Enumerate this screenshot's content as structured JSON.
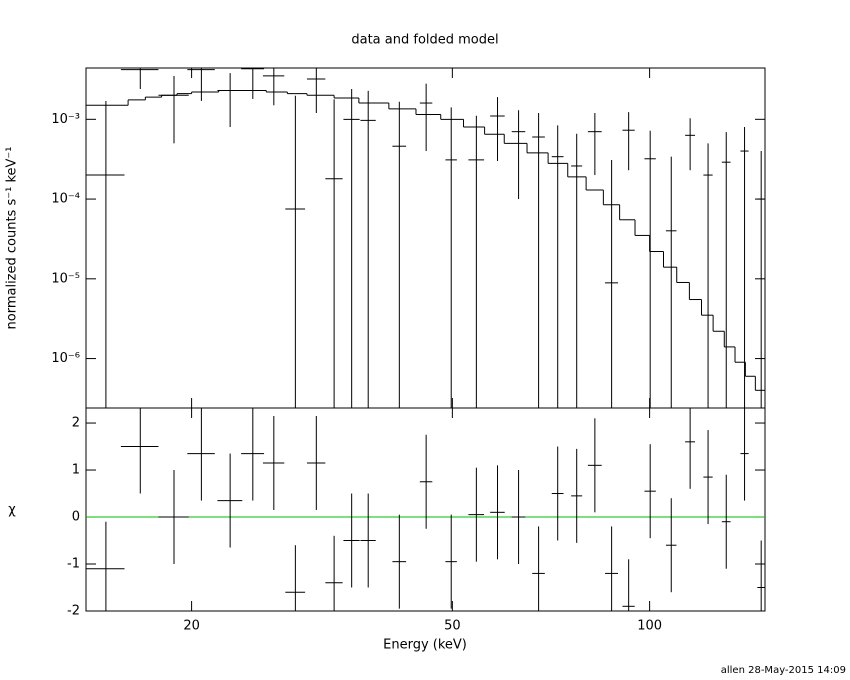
{
  "chart_data": [
    {
      "type": "errorbar",
      "title": "data and folded model",
      "ylabel": "normalized counts s⁻¹ keV⁻¹",
      "log_x": true,
      "log_y": true,
      "xlim": [
        13.8,
        150
      ],
      "ylim": [
        2.4e-07,
        0.0044
      ],
      "xticks": [
        20,
        50,
        100
      ],
      "yticks": [
        {
          "value": 0.001,
          "label": "10⁻³"
        },
        {
          "value": 0.0001,
          "label": "10⁻⁴"
        },
        {
          "value": 1e-05,
          "label": "10⁻⁵"
        },
        {
          "value": 1e-06,
          "label": "10⁻⁶"
        }
      ],
      "color": "#000000",
      "x": [
        14.8,
        16.7,
        18.8,
        20.7,
        22.9,
        24.8,
        26.7,
        28.8,
        31.0,
        33.0,
        35.1,
        37.2,
        41.5,
        45.6,
        49.8,
        54.4,
        58.6,
        63.1,
        67.7,
        72.4,
        77.4,
        82.5,
        87.5,
        92.9,
        100.2,
        107.9,
        115.3,
        122.8,
        130.9,
        139.6,
        148.0
      ],
      "xerr": [
        1.0,
        1.1,
        1.0,
        1.0,
        1.0,
        1.0,
        1.0,
        1.0,
        1.0,
        1.0,
        1.0,
        1.0,
        1.0,
        1.0,
        1.0,
        1.5,
        1.5,
        1.5,
        1.5,
        1.5,
        1.5,
        2.0,
        2.0,
        2.0,
        2.0,
        2.0,
        2.0,
        2.0,
        2.0,
        2.0,
        2.0
      ],
      "values": [
        0.0002,
        0.0042,
        0.002,
        0.0042,
        0.0023,
        0.0043,
        0.0035,
        7.5e-05,
        0.0032,
        0.00018,
        0.001,
        0.00097,
        0.00046,
        0.0016,
        0.00031,
        0.00031,
        0.0011,
        0.0007,
        0.0006,
        0.00034,
        0.00026,
        0.0007,
        8.9e-06,
        0.00073,
        0.00032,
        4e-05,
        0.00063,
        0.0002,
        0.00029,
        0.0004,
        0.0001
      ],
      "errors": [
        0.0015,
        0.0018,
        0.0015,
        0.0025,
        0.0015,
        0.0025,
        0.002,
        0.0019,
        0.002,
        0.0016,
        0.0014,
        0.0013,
        0.0012,
        0.0012,
        0.0011,
        0.0008,
        0.0008,
        0.0006,
        0.0006,
        0.0005,
        0.0004,
        0.0005,
        0.0003,
        0.0005,
        0.0004,
        0.0003,
        0.0004,
        0.0003,
        0.0004,
        0.0004,
        0.0003
      ],
      "model": {
        "color": "#000000",
        "x": [
          13.8,
          16,
          17,
          18,
          19,
          20,
          22,
          24,
          26,
          28,
          30,
          33,
          36,
          40,
          44,
          48,
          52,
          56,
          60,
          65,
          70,
          75,
          80,
          85,
          90,
          95,
          100,
          105,
          110,
          115,
          120,
          125,
          130,
          135,
          140,
          145
        ],
        "values": [
          0.0015,
          0.00175,
          0.0019,
          0.002,
          0.0021,
          0.0022,
          0.0023,
          0.0023,
          0.0022,
          0.0021,
          0.002,
          0.00185,
          0.0016,
          0.00135,
          0.00115,
          0.001,
          0.0008,
          0.00065,
          0.0005,
          0.00038,
          0.00028,
          0.00019,
          0.00013,
          8.5e-05,
          5.5e-05,
          3.5e-05,
          2.2e-05,
          1.4e-05,
          9e-06,
          5.5e-06,
          3.5e-06,
          2.2e-06,
          1.4e-06,
          9e-07,
          6e-07,
          4e-07
        ]
      }
    },
    {
      "type": "errorbar",
      "xlabel": "Energy (keV)",
      "ylabel": "χ",
      "log_x": true,
      "log_y": false,
      "xlim": [
        13.8,
        150
      ],
      "ylim": [
        -2,
        2.32
      ],
      "xticks": [
        20,
        50,
        100
      ],
      "yticks": [
        -2,
        -1,
        0,
        1,
        2
      ],
      "color": "#000000",
      "reference_line": {
        "value": 0,
        "color": "#00c000"
      },
      "x": [
        14.8,
        16.7,
        18.8,
        20.7,
        22.9,
        24.8,
        26.7,
        28.8,
        31.0,
        33.0,
        35.1,
        37.2,
        41.5,
        45.6,
        49.8,
        54.4,
        58.6,
        63.1,
        67.7,
        72.4,
        77.4,
        82.5,
        87.5,
        92.9,
        100.2,
        107.9,
        115.3,
        122.8,
        130.9,
        139.6,
        148.0
      ],
      "xerr": [
        1.0,
        1.1,
        1.0,
        1.0,
        1.0,
        1.0,
        1.0,
        1.0,
        1.0,
        1.0,
        1.0,
        1.0,
        1.0,
        1.0,
        1.0,
        1.5,
        1.5,
        1.5,
        1.5,
        1.5,
        1.5,
        2.0,
        2.0,
        2.0,
        2.0,
        2.0,
        2.0,
        2.0,
        2.0,
        2.0,
        2.0
      ],
      "values": [
        -1.1,
        1.5,
        0.0,
        1.35,
        0.35,
        1.35,
        1.15,
        -1.6,
        1.15,
        -1.4,
        -0.5,
        -0.5,
        -0.95,
        0.75,
        -0.95,
        0.05,
        0.1,
        0.0,
        -1.2,
        0.5,
        0.45,
        1.1,
        -1.2,
        -1.9,
        0.55,
        -0.6,
        1.6,
        0.85,
        -0.1,
        1.35,
        -1.5
      ],
      "errors": [
        1,
        1,
        1,
        1,
        1,
        1,
        1,
        1,
        1,
        1,
        1,
        1,
        1,
        1,
        1,
        1,
        1,
        1,
        1,
        1,
        1,
        1,
        1,
        1,
        1,
        1,
        1,
        1,
        1,
        1,
        1
      ]
    },
    {
      "type": "footer",
      "text": "allen 28-May-2015 14:09"
    }
  ]
}
